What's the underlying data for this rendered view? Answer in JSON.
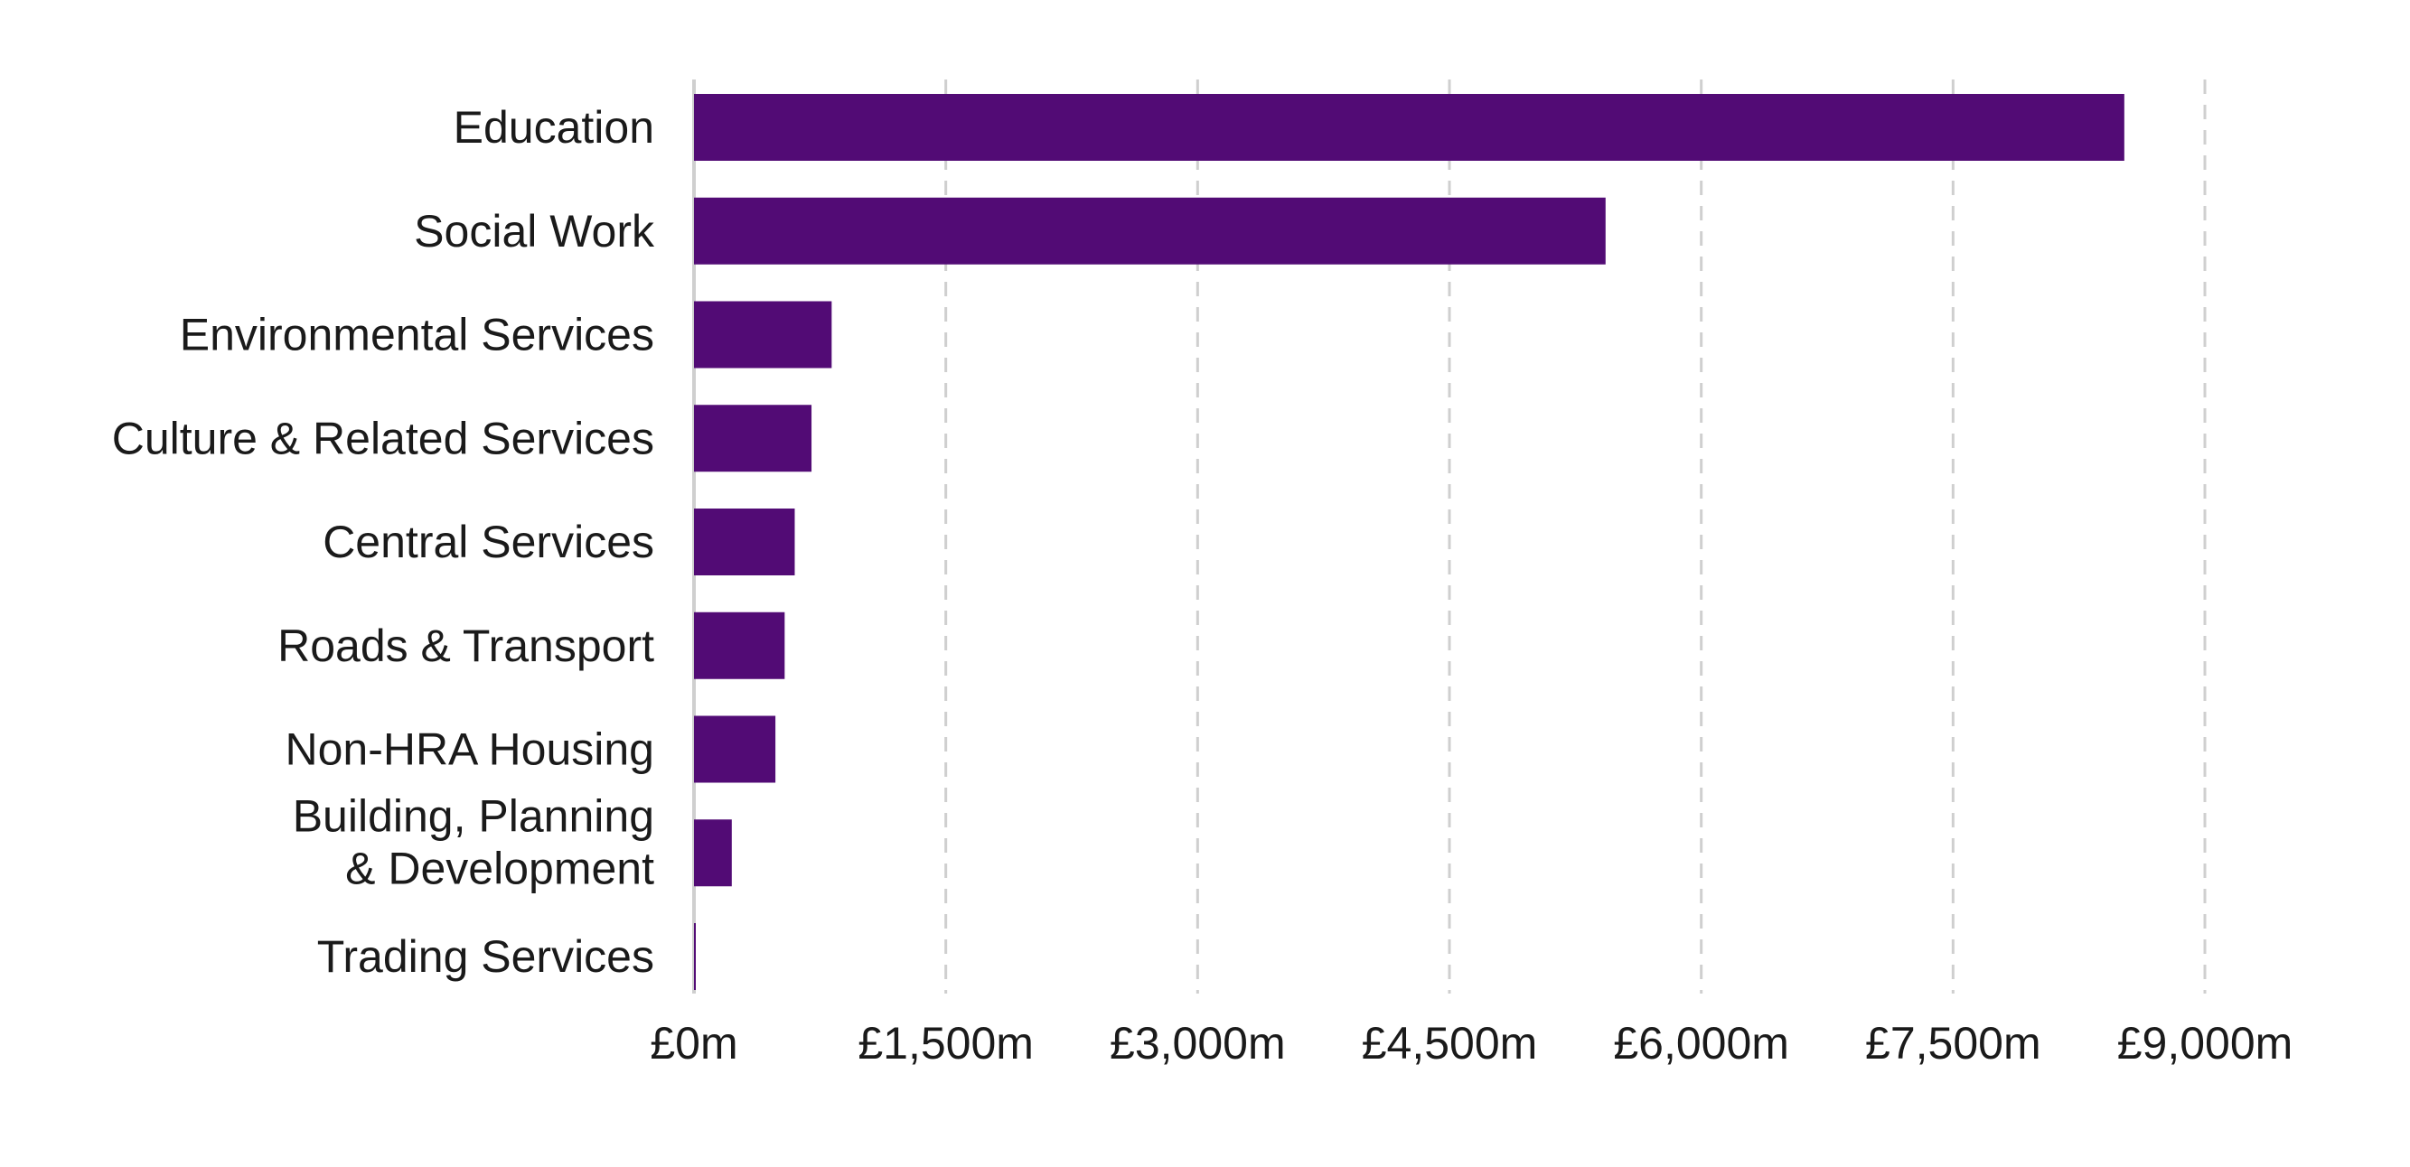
{
  "chart_data": {
    "type": "bar",
    "orientation": "horizontal",
    "categories": [
      [
        "Education"
      ],
      [
        "Social Work"
      ],
      [
        "Environmental Services"
      ],
      [
        "Culture & Related Services"
      ],
      [
        "Central Services"
      ],
      [
        "Roads & Transport"
      ],
      [
        "Non-HRA Housing"
      ],
      [
        "Building, Planning",
        "& Development"
      ],
      [
        "Trading Services"
      ]
    ],
    "values": [
      8520,
      5430,
      820,
      700,
      600,
      540,
      485,
      225,
      10
    ],
    "xlim": [
      0,
      9000
    ],
    "xticks": [
      0,
      1500,
      3000,
      4500,
      6000,
      7500,
      9000
    ],
    "xtick_labels": [
      "£0m",
      "£1,500m",
      "£3,000m",
      "£4,500m",
      "£6,000m",
      "£7,500m",
      "£9,000m"
    ],
    "grid": "vertical dashed",
    "legend": "none",
    "bar_color": "#520b75",
    "title": "",
    "xlabel": "",
    "ylabel": ""
  }
}
